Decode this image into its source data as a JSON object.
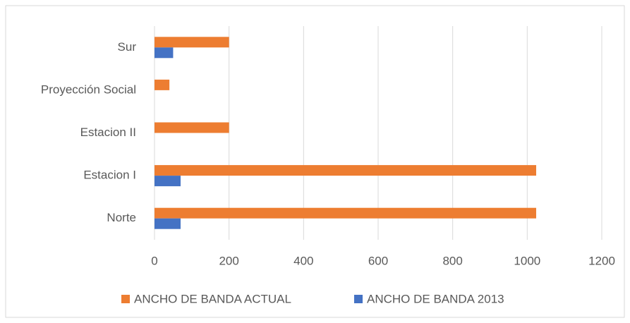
{
  "chart_data": {
    "type": "hbar",
    "categories": [
      "Norte",
      "Estacion I",
      "Estacion II",
      "Proyección Social",
      "Sur"
    ],
    "series": [
      {
        "name": "ANCHO DE BANDA ACTUAL",
        "color": "#ed7d31",
        "values": [
          1024,
          1024,
          200,
          40,
          200
        ]
      },
      {
        "name": "ANCHO DE BANDA 2013",
        "color": "#4472c4",
        "values": [
          70,
          70,
          null,
          null,
          50
        ]
      }
    ],
    "xlim": [
      0,
      1200
    ],
    "xticks": [
      0,
      200,
      400,
      600,
      800,
      1000,
      1200
    ],
    "grid": true,
    "legend": "bottom"
  }
}
